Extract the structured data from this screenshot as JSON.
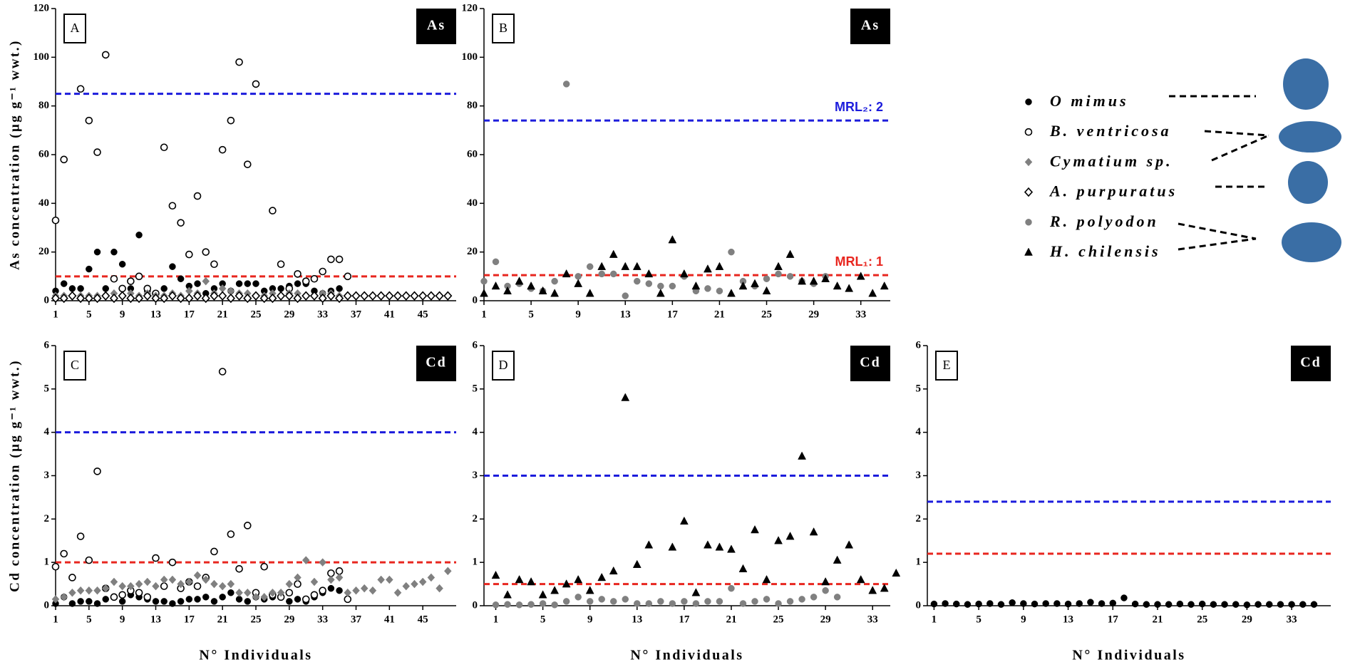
{
  "chart_data": [
    {
      "type": "scatter",
      "label": "A",
      "tag": "As",
      "ylabel": "As concentration (μg g⁻¹ wwt.)",
      "xlim": [
        1,
        49
      ],
      "xticks": [
        1,
        5,
        9,
        13,
        17,
        21,
        25,
        29,
        33,
        37,
        41,
        45
      ],
      "ylim": [
        0,
        120
      ],
      "yticks": [
        0,
        20,
        40,
        60,
        80,
        100,
        120
      ],
      "hlines": [
        {
          "value": 85,
          "color": "#1c1cdc"
        },
        {
          "value": 10,
          "color": "#e8261f"
        }
      ],
      "series": [
        {
          "name": "O mimus",
          "marker": "circle",
          "color": "#000000",
          "open": false,
          "x": [
            1,
            2,
            3,
            4,
            5,
            6,
            7,
            8,
            9,
            10,
            11,
            12,
            13,
            14,
            15,
            16,
            17,
            18,
            19,
            20,
            21,
            22,
            23,
            24,
            25,
            26,
            27,
            28,
            29,
            30,
            31,
            32,
            33,
            34,
            35
          ],
          "values": [
            4,
            7,
            5,
            5,
            13,
            20,
            5,
            20,
            15,
            5,
            27,
            4,
            3,
            5,
            14,
            9,
            6,
            7,
            3,
            5,
            7,
            4,
            7,
            7,
            7,
            4,
            5,
            5,
            6,
            7,
            7,
            4,
            3,
            4,
            5
          ]
        },
        {
          "name": "B. ventricosa",
          "marker": "circle",
          "color": "#000000",
          "open": true,
          "x": [
            1,
            2,
            4,
            5,
            6,
            7,
            8,
            9,
            10,
            11,
            12,
            13,
            14,
            15,
            16,
            17,
            18,
            19,
            20,
            21,
            22,
            23,
            24,
            25,
            27,
            28,
            29,
            30,
            31,
            32,
            33,
            34,
            35,
            36
          ],
          "values": [
            33,
            58,
            87,
            74,
            61,
            101,
            9,
            5,
            8,
            10,
            5,
            3,
            63,
            39,
            32,
            19,
            43,
            20,
            15,
            62,
            74,
            98,
            56,
            89,
            37,
            15,
            5,
            11,
            8,
            9,
            12,
            17,
            17,
            10
          ]
        },
        {
          "name": "Cymatium sp.",
          "marker": "diamond",
          "color": "#808080",
          "open": false,
          "x": [
            1,
            2,
            3,
            4,
            5,
            6,
            7,
            8,
            9,
            10,
            11,
            12,
            13,
            14,
            15,
            16,
            17,
            18,
            19,
            20,
            21,
            22,
            23,
            24,
            25,
            26,
            27,
            28,
            29,
            30,
            31,
            32,
            33,
            34,
            35
          ],
          "values": [
            2,
            2,
            2,
            2,
            2,
            2,
            2,
            3,
            2,
            3,
            2,
            3,
            2,
            2,
            3,
            2,
            4,
            3,
            8,
            3,
            5,
            4,
            3,
            3,
            2,
            2,
            3,
            2,
            3,
            3,
            2,
            2,
            3,
            3,
            2
          ]
        },
        {
          "name": "A. purpuratus",
          "marker": "diamond",
          "color": "#000000",
          "open": true,
          "x": [
            1,
            2,
            3,
            4,
            5,
            6,
            7,
            8,
            9,
            10,
            11,
            12,
            13,
            14,
            15,
            16,
            17,
            18,
            19,
            20,
            21,
            22,
            23,
            24,
            25,
            26,
            27,
            28,
            29,
            30,
            31,
            32,
            33,
            34,
            35,
            36,
            37,
            38,
            39,
            40,
            41,
            42,
            43,
            44,
            45,
            46,
            47,
            48
          ],
          "values": [
            1,
            1,
            2,
            1,
            1,
            1,
            2,
            1,
            2,
            1,
            1,
            2,
            1,
            1,
            2,
            1,
            1,
            2,
            1,
            2,
            2,
            1,
            2,
            1,
            2,
            1,
            1,
            2,
            2,
            1,
            2,
            2,
            1,
            2,
            1,
            2,
            2,
            2,
            2,
            2,
            2,
            2,
            2,
            2,
            2,
            2,
            2,
            2
          ]
        }
      ]
    },
    {
      "type": "scatter",
      "label": "B",
      "tag": "As",
      "xlim": [
        1,
        35.5
      ],
      "xticks": [
        1,
        5,
        9,
        13,
        17,
        21,
        25,
        29,
        33
      ],
      "ylim": [
        0,
        120
      ],
      "yticks": [
        0,
        20,
        40,
        60,
        80,
        100,
        120
      ],
      "hlines": [
        {
          "value": 74,
          "color": "#1c1cdc",
          "label": "MRL₂: 2"
        },
        {
          "value": 10.5,
          "color": "#e8261f",
          "label": "MRL₁: 1"
        }
      ],
      "series": [
        {
          "name": "R. polyodon",
          "marker": "circle",
          "color": "#808080",
          "open": false,
          "x": [
            1,
            2,
            3,
            4,
            5,
            6,
            7,
            8,
            9,
            10,
            11,
            12,
            13,
            14,
            15,
            16,
            17,
            18,
            19,
            20,
            21,
            22,
            23,
            24,
            25,
            26,
            27,
            28,
            29,
            30
          ],
          "values": [
            8,
            16,
            6,
            7,
            5,
            4,
            8,
            89,
            10,
            14,
            11,
            11,
            2,
            8,
            7,
            6,
            6,
            10,
            4,
            5,
            4,
            20,
            8,
            6,
            9,
            11,
            10,
            8,
            7,
            10
          ]
        },
        {
          "name": "H. chilensis",
          "marker": "triangle",
          "color": "#000000",
          "open": false,
          "x": [
            1,
            2,
            3,
            4,
            5,
            6,
            7,
            8,
            9,
            10,
            11,
            12,
            13,
            14,
            15,
            16,
            17,
            18,
            19,
            20,
            21,
            22,
            23,
            24,
            25,
            26,
            27,
            28,
            29,
            30,
            31,
            32,
            33,
            34,
            35
          ],
          "values": [
            3,
            6,
            4,
            8,
            6,
            4,
            3,
            11,
            7,
            3,
            14,
            19,
            14,
            14,
            11,
            3,
            25,
            11,
            6,
            13,
            14,
            3,
            6,
            7,
            4,
            14,
            19,
            8,
            8,
            9,
            6,
            5,
            10,
            3,
            6
          ]
        }
      ]
    },
    {
      "type": "scatter",
      "label": "C",
      "tag": "Cd",
      "ylabel": "Cd concentration (μg g⁻¹ wwt.)",
      "xlabel": "N° Individuals",
      "xlim": [
        1,
        49
      ],
      "xticks": [
        1,
        5,
        9,
        13,
        17,
        21,
        25,
        29,
        33,
        37,
        41,
        45
      ],
      "ylim": [
        0,
        6
      ],
      "yticks": [
        0,
        1,
        2,
        3,
        4,
        5,
        6
      ],
      "hlines": [
        {
          "value": 4,
          "color": "#1c1cdc"
        },
        {
          "value": 1,
          "color": "#e8261f"
        }
      ],
      "series": [
        {
          "name": "O mimus",
          "x": [
            1,
            2,
            3,
            4,
            5,
            6,
            7,
            8,
            9,
            10,
            11,
            12,
            13,
            14,
            15,
            16,
            17,
            18,
            19,
            20,
            21,
            22,
            23,
            24,
            25,
            26,
            27,
            28,
            29,
            30,
            31,
            32,
            33,
            34,
            35
          ],
          "values": [
            0.05,
            0.2,
            0.05,
            0.1,
            0.1,
            0.05,
            0.15,
            0.2,
            0.1,
            0.25,
            0.2,
            0.15,
            0.1,
            0.1,
            0.05,
            0.1,
            0.15,
            0.15,
            0.2,
            0.1,
            0.2,
            0.3,
            0.15,
            0.1,
            0.2,
            0.15,
            0.2,
            0.2,
            0.1,
            0.15,
            0.1,
            0.2,
            0.3,
            0.4,
            0.35
          ]
        },
        {
          "name": "B. ventricosa",
          "x": [
            1,
            2,
            3,
            4,
            5,
            6,
            7,
            8,
            9,
            10,
            11,
            12,
            13,
            14,
            15,
            16,
            17,
            18,
            19,
            20,
            21,
            22,
            23,
            24,
            25,
            26,
            27,
            28,
            29,
            30,
            31,
            32,
            33,
            34,
            35,
            36
          ],
          "values": [
            0.9,
            1.2,
            0.65,
            1.6,
            1.05,
            3.1,
            0.4,
            0.2,
            0.25,
            0.35,
            0.3,
            0.2,
            1.1,
            0.45,
            1.0,
            0.4,
            0.55,
            0.45,
            0.65,
            1.25,
            5.4,
            1.65,
            0.85,
            1.85,
            0.3,
            0.9,
            0.25,
            0.2,
            0.3,
            0.5,
            0.15,
            0.25,
            0.35,
            0.75,
            0.8,
            0.15
          ]
        },
        {
          "name": "Cymatium sp.",
          "x": [
            1,
            2,
            3,
            4,
            5,
            6,
            7,
            8,
            9,
            10,
            11,
            12,
            13,
            14,
            15,
            16,
            17,
            18,
            19,
            20,
            21,
            22,
            23,
            24,
            25,
            26,
            27,
            28,
            29,
            30,
            31,
            32,
            33,
            34,
            35,
            36,
            37,
            38,
            39,
            40,
            41,
            42,
            43,
            44,
            45,
            46,
            47,
            48
          ],
          "values": [
            0.15,
            0.2,
            0.3,
            0.35,
            0.35,
            0.35,
            0.4,
            0.55,
            0.45,
            0.45,
            0.5,
            0.55,
            0.45,
            0.6,
            0.6,
            0.5,
            0.55,
            0.7,
            0.6,
            0.5,
            0.45,
            0.5,
            0.3,
            0.3,
            0.2,
            0.2,
            0.3,
            0.3,
            0.5,
            0.65,
            1.05,
            0.55,
            1.0,
            0.6,
            0.65,
            0.3,
            0.35,
            0.4,
            0.35,
            0.6,
            0.6,
            0.3,
            0.45,
            0.5,
            0.55,
            0.65,
            0.4,
            0.8
          ]
        }
      ]
    },
    {
      "type": "scatter",
      "label": "D",
      "tag": "Cd",
      "xlabel": "N° Individuals",
      "xlim": [
        0,
        34.5
      ],
      "xticks": [
        1,
        5,
        9,
        13,
        17,
        21,
        25,
        29,
        33
      ],
      "ylim": [
        0,
        6
      ],
      "yticks": [
        0,
        1,
        2,
        3,
        4,
        5,
        6
      ],
      "hlines": [
        {
          "value": 3,
          "color": "#1c1cdc"
        },
        {
          "value": 0.5,
          "color": "#e8261f"
        }
      ],
      "series": [
        {
          "name": "R. polyodon",
          "x": [
            1,
            2,
            3,
            4,
            5,
            6,
            7,
            8,
            9,
            10,
            11,
            12,
            13,
            14,
            15,
            16,
            17,
            18,
            19,
            20,
            21,
            22,
            23,
            24,
            25,
            26,
            27,
            28,
            29,
            30
          ],
          "values": [
            0.02,
            0.03,
            0.02,
            0.03,
            0.05,
            0.02,
            0.1,
            0.2,
            0.1,
            0.15,
            0.1,
            0.15,
            0.05,
            0.05,
            0.1,
            0.05,
            0.1,
            0.05,
            0.1,
            0.1,
            0.4,
            0.05,
            0.1,
            0.15,
            0.05,
            0.1,
            0.15,
            0.2,
            0.35,
            0.2
          ]
        },
        {
          "name": "H. chilensis",
          "x": [
            1,
            2,
            3,
            4,
            5,
            6,
            7,
            8,
            9,
            10,
            11,
            12,
            13,
            14,
            16,
            17,
            18,
            19,
            20,
            21,
            22,
            23,
            24,
            25,
            26,
            27,
            28,
            29,
            30,
            31,
            32,
            33,
            34,
            35
          ],
          "values": [
            0.7,
            0.25,
            0.6,
            0.55,
            0.25,
            0.35,
            0.5,
            0.6,
            0.35,
            0.65,
            0.8,
            4.8,
            0.95,
            1.4,
            1.35,
            1.95,
            0.3,
            1.4,
            1.35,
            1.3,
            0.85,
            1.75,
            0.6,
            1.5,
            1.6,
            3.45,
            1.7,
            0.55,
            1.05,
            1.4,
            0.6,
            0.35,
            0.4,
            0.75
          ]
        }
      ]
    },
    {
      "type": "scatter",
      "label": "E",
      "tag": "Cd",
      "xlabel": "N° Individuals",
      "xlim": [
        0.4,
        36.5
      ],
      "xticks": [
        1,
        5,
        9,
        13,
        17,
        21,
        25,
        29,
        33
      ],
      "ylim": [
        0,
        6
      ],
      "yticks": [
        0,
        1,
        2,
        3,
        4,
        5,
        6
      ],
      "hlines": [
        {
          "value": 2.4,
          "color": "#1c1cdc"
        },
        {
          "value": 1.2,
          "color": "#e8261f"
        }
      ],
      "series": [
        {
          "name": "O mimus",
          "x": [
            1,
            2,
            3,
            4,
            5,
            6,
            7,
            8,
            9,
            10,
            11,
            12,
            13,
            14,
            15,
            16,
            17,
            18,
            19,
            20,
            21,
            22,
            23,
            24,
            25,
            26,
            27,
            28,
            29,
            30,
            31,
            32,
            33,
            34,
            35
          ],
          "values": [
            0.04,
            0.05,
            0.04,
            0.03,
            0.04,
            0.05,
            0.03,
            0.07,
            0.05,
            0.04,
            0.05,
            0.05,
            0.04,
            0.05,
            0.08,
            0.05,
            0.06,
            0.18,
            0.04,
            0.03,
            0.03,
            0.03,
            0.04,
            0.03,
            0.04,
            0.03,
            0.03,
            0.03,
            0.02,
            0.03,
            0.03,
            0.03,
            0.03,
            0.03,
            0.03
          ]
        }
      ]
    }
  ]
}
